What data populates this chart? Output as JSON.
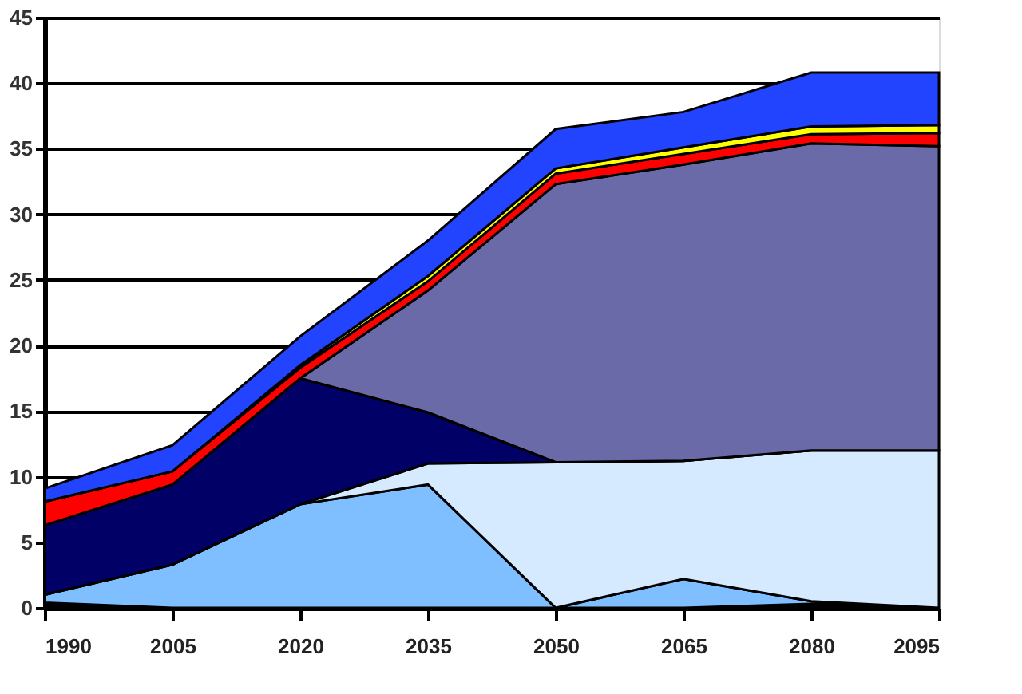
{
  "chart_data": {
    "type": "area",
    "stacked": true,
    "x": [
      1990,
      2005,
      2020,
      2035,
      2050,
      2065,
      2080,
      2095
    ],
    "xlim": [
      1990,
      2095
    ],
    "xticks": [
      1990,
      2005,
      2020,
      2035,
      2050,
      2065,
      2080,
      2095
    ],
    "ylim": [
      0,
      45
    ],
    "yticks": [
      0,
      5,
      10,
      15,
      20,
      25,
      30,
      35,
      40,
      45
    ],
    "grid": "y",
    "legend": false,
    "series": [
      {
        "color": "#000000",
        "values": [
          0.4,
          0,
          0,
          0,
          0,
          0,
          0.3,
          0
        ]
      },
      {
        "color": "#7fbfff",
        "values": [
          0.6,
          3.3,
          7.9,
          9.4,
          0,
          2.2,
          0.2,
          0
        ]
      },
      {
        "color": "#d6eaff",
        "values": [
          0,
          0,
          0,
          1.6,
          11.1,
          9.0,
          11.5,
          12.0
        ]
      },
      {
        "color": "#000066",
        "values": [
          5.3,
          6.1,
          9.6,
          3.9,
          0,
          0,
          0,
          0
        ]
      },
      {
        "color": "#6a6aa8",
        "values": [
          0,
          0,
          0,
          9.3,
          21.2,
          22.6,
          23.4,
          23.2
        ]
      },
      {
        "color": "#ff0000",
        "values": [
          1.8,
          1.0,
          0.8,
          0.7,
          0.8,
          0.8,
          0.7,
          1.0
        ]
      },
      {
        "color": "#ffff00",
        "values": [
          0,
          0,
          0.2,
          0.4,
          0.4,
          0.5,
          0.6,
          0.6
        ]
      },
      {
        "color": "#2244ff",
        "values": [
          1.0,
          2.0,
          2.2,
          2.7,
          3.0,
          2.7,
          4.1,
          4.0
        ]
      }
    ]
  }
}
